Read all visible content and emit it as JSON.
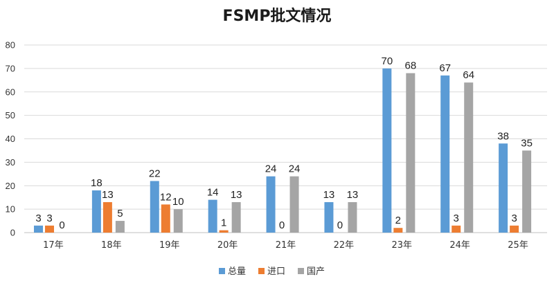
{
  "chart_data": {
    "type": "bar",
    "title": "FSMP批文情况",
    "categories": [
      "17年",
      "18年",
      "19年",
      "20年",
      "21年",
      "22年",
      "23年",
      "24年",
      "25年"
    ],
    "series": [
      {
        "name": "总量",
        "color": "#5b9bd5",
        "values": [
          3,
          18,
          22,
          14,
          24,
          13,
          70,
          67,
          38
        ]
      },
      {
        "name": "进口",
        "color": "#ed7d31",
        "values": [
          3,
          13,
          12,
          1,
          0,
          0,
          2,
          3,
          3
        ]
      },
      {
        "name": "国产",
        "color": "#a5a5a5",
        "values": [
          0,
          5,
          10,
          13,
          24,
          13,
          68,
          64,
          35
        ]
      }
    ],
    "ylim": [
      0,
      80
    ],
    "yticks": [
      0,
      10,
      20,
      30,
      40,
      50,
      60,
      70,
      80
    ],
    "grid": true,
    "legend": "bottom"
  }
}
